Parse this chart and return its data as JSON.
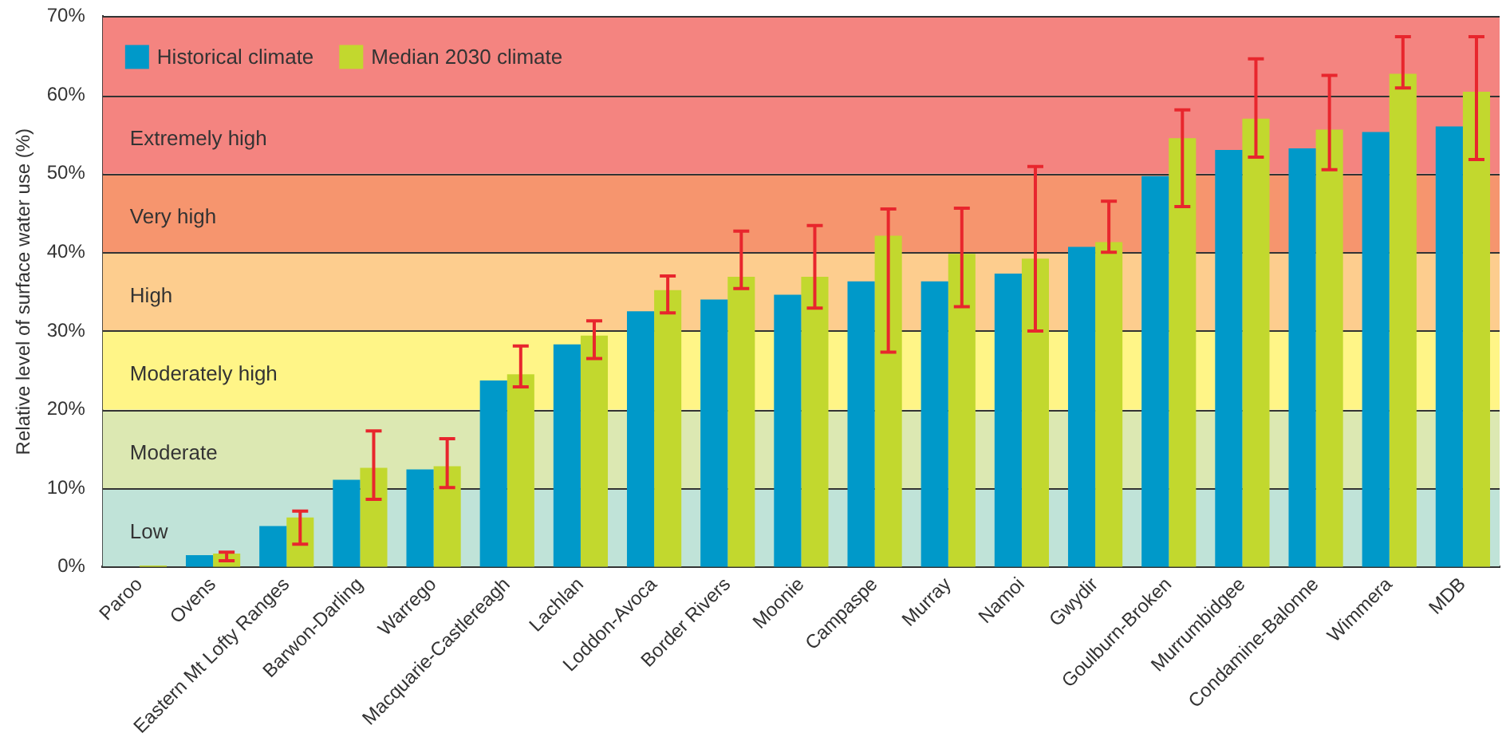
{
  "chart_data": {
    "type": "bar",
    "ylabel": "Relative level of surface water use (%)",
    "categories": [
      "Paroo",
      "Ovens",
      "Eastern Mt Lofty Ranges",
      "Barwon-Darling",
      "Warrego",
      "Macquarie-Castlereagh",
      "Lachlan",
      "Loddon-Avoca",
      "Border Rivers",
      "Moonie",
      "Campaspe",
      "Murray",
      "Namoi",
      "Gwydir",
      "Goulburn-Broken",
      "Murrumbidgee",
      "Condamine-Balonne",
      "Wimmera",
      "MDB"
    ],
    "series": [
      {
        "name": "Historical climate",
        "color": "#0099c9",
        "values": [
          0,
          1.5,
          5.2,
          11.1,
          12.4,
          23.7,
          28.3,
          32.5,
          34.0,
          34.6,
          36.3,
          36.3,
          37.3,
          40.7,
          49.7,
          53.0,
          53.2,
          55.3,
          56.0
        ]
      },
      {
        "name": "Median 2030 climate",
        "color": "#c2d82e",
        "values": [
          0.2,
          1.7,
          6.3,
          12.6,
          12.8,
          24.5,
          29.4,
          35.2,
          36.9,
          36.9,
          42.1,
          39.8,
          39.2,
          41.3,
          54.5,
          57.0,
          55.6,
          62.7,
          60.4
        ],
        "errors": [
          null,
          [
            0.8,
            1.9
          ],
          [
            2.9,
            7.1
          ],
          [
            8.6,
            17.3
          ],
          [
            10.1,
            16.3
          ],
          [
            22.9,
            28.1
          ],
          [
            26.5,
            31.3
          ],
          [
            32.3,
            37.0
          ],
          [
            35.4,
            42.7
          ],
          [
            32.9,
            43.4
          ],
          [
            27.3,
            45.5
          ],
          [
            33.1,
            45.6
          ],
          [
            30.0,
            50.9
          ],
          [
            40.0,
            46.5
          ],
          [
            45.8,
            58.1
          ],
          [
            52.1,
            64.6
          ],
          [
            50.5,
            62.5
          ],
          [
            60.9,
            67.4
          ],
          [
            51.8,
            67.4
          ]
        ]
      }
    ],
    "ylim": [
      0,
      70
    ],
    "yticks": [
      {
        "value": 0,
        "label": "0%"
      },
      {
        "value": 10,
        "label": "10%"
      },
      {
        "value": 20,
        "label": "20%"
      },
      {
        "value": 30,
        "label": "30%"
      },
      {
        "value": 40,
        "label": "40%"
      },
      {
        "value": 50,
        "label": "50%"
      },
      {
        "value": 60,
        "label": "60%"
      },
      {
        "value": 70,
        "label": "70%"
      }
    ],
    "bands": [
      {
        "axis": "y",
        "from": 0,
        "to": 10,
        "label": "Low",
        "color": "#c0e3d8"
      },
      {
        "axis": "y",
        "from": 10,
        "to": 20,
        "label": "Moderate",
        "color": "#dce8b2"
      },
      {
        "axis": "y",
        "from": 20,
        "to": 30,
        "label": "Moderately high",
        "color": "#fff587"
      },
      {
        "axis": "y",
        "from": 30,
        "to": 40,
        "label": "High",
        "color": "#fdcd8e"
      },
      {
        "axis": "y",
        "from": 40,
        "to": 50,
        "label": "Very high",
        "color": "#f6956e"
      },
      {
        "axis": "y",
        "from": 50,
        "to": 70,
        "label": "Extremely high",
        "color": "#f48480"
      }
    ],
    "grid": "y",
    "legend": "top left"
  }
}
